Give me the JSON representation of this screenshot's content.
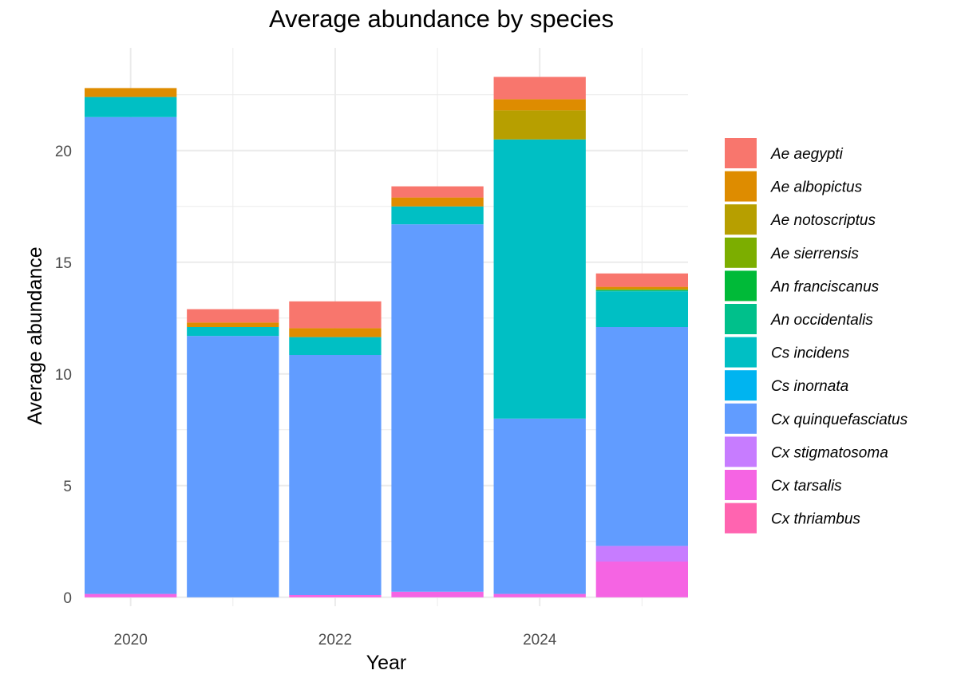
{
  "chart_data": {
    "type": "bar",
    "stacked": true,
    "title": "Average abundance by species",
    "xlabel": "Year",
    "ylabel": "Average abundance",
    "x": [
      2020,
      2021,
      2022,
      2023,
      2024,
      2025
    ],
    "x_ticks": [
      "2020",
      "2022",
      "2024"
    ],
    "y_ticks": [
      "0",
      "5",
      "10",
      "15",
      "20"
    ],
    "ylim": [
      -0.4,
      24.6
    ],
    "grid": true,
    "legend_position": "right",
    "series": [
      {
        "name": "Ae aegypti",
        "color": "#F8766D",
        "values": [
          0,
          0.6,
          1.2,
          0.5,
          1.0,
          0.6
        ]
      },
      {
        "name": "Ae albopictus",
        "color": "#DE8C00",
        "values": [
          0.4,
          0.2,
          0.4,
          0.4,
          0.5,
          0.1
        ]
      },
      {
        "name": "Ae notoscriptus",
        "color": "#B79F00",
        "values": [
          0,
          0,
          0,
          0,
          1.3,
          0
        ]
      },
      {
        "name": "Ae sierrensis",
        "color": "#7CAE00",
        "values": [
          0,
          0,
          0,
          0,
          0,
          0.05
        ]
      },
      {
        "name": "An franciscanus",
        "color": "#00BA38",
        "values": [
          0,
          0,
          0,
          0,
          0,
          0
        ]
      },
      {
        "name": "An occidentalis",
        "color": "#00C08B",
        "values": [
          0,
          0,
          0,
          0,
          0,
          0.05
        ]
      },
      {
        "name": "Cs incidens",
        "color": "#00BFC4",
        "values": [
          0.9,
          0.4,
          0.8,
          0.8,
          12.5,
          1.6
        ]
      },
      {
        "name": "Cs inornata",
        "color": "#00B4F0",
        "values": [
          0,
          0,
          0,
          0,
          0,
          0
        ]
      },
      {
        "name": "Cx quinquefasciatus",
        "color": "#619CFF",
        "values": [
          21.35,
          11.7,
          10.75,
          16.45,
          7.85,
          9.8
        ]
      },
      {
        "name": "Cx stigmatosoma",
        "color": "#C77CFF",
        "values": [
          0,
          0,
          0,
          0,
          0,
          0.7
        ]
      },
      {
        "name": "Cx tarsalis",
        "color": "#F564E3",
        "values": [
          0.15,
          0,
          0.1,
          0.25,
          0.15,
          1.6
        ]
      },
      {
        "name": "Cx thriambus",
        "color": "#FF64B0",
        "values": [
          0,
          0,
          0,
          0,
          0,
          0
        ]
      }
    ]
  }
}
